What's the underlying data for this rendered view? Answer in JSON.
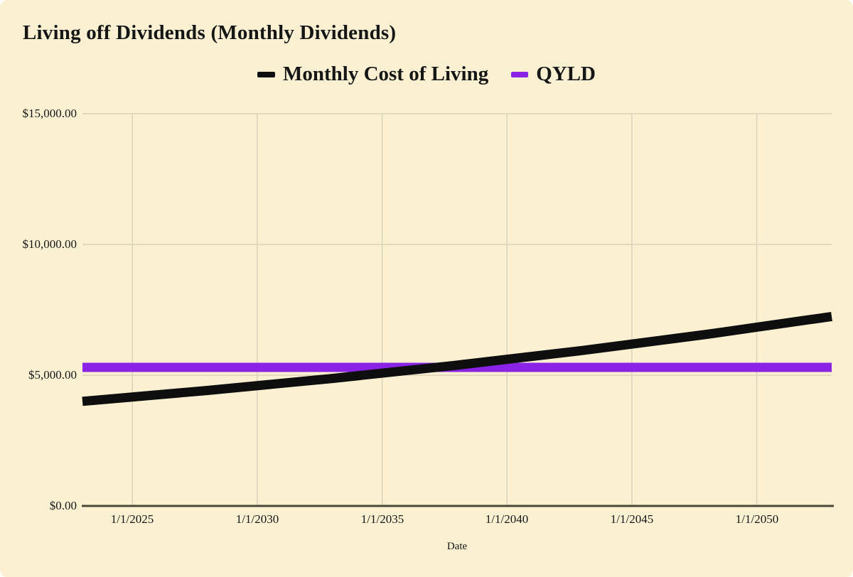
{
  "title": "Living off Dividends (Monthly Dividends)",
  "chart_data": {
    "type": "line",
    "title": "Living off Dividends (Monthly Dividends)",
    "xlabel": "Date",
    "ylabel": "",
    "legend_position": "top",
    "grid": true,
    "x_ticks": [
      "1/1/2025",
      "1/1/2030",
      "1/1/2035",
      "1/1/2040",
      "1/1/2045",
      "1/1/2050"
    ],
    "x_tick_years": [
      2025,
      2030,
      2035,
      2040,
      2045,
      2050
    ],
    "y_ticks": [
      "$15,000.00",
      "$10,000.00",
      "$5,000.00",
      "$0.00"
    ],
    "y_tick_values": [
      15000,
      10000,
      5000,
      0
    ],
    "x_range_years": [
      2023,
      2053
    ],
    "ylim": [
      0,
      15000
    ],
    "colors": {
      "background": "#FBF1D2",
      "grid": "#DBD2BA",
      "axis": "#4C4538",
      "text": "#161616"
    },
    "series": [
      {
        "name": "Monthly Cost of Living",
        "color": "#0E0E0E",
        "x": [
          2023,
          2028,
          2033,
          2038,
          2043,
          2048,
          2053
        ],
        "values": [
          4000,
          4416,
          4876,
          5383,
          5944,
          6563,
          7245
        ]
      },
      {
        "name": "QYLD",
        "color": "#8B23E6",
        "x": [
          2023,
          2053
        ],
        "values": [
          5300,
          5300
        ]
      }
    ]
  }
}
